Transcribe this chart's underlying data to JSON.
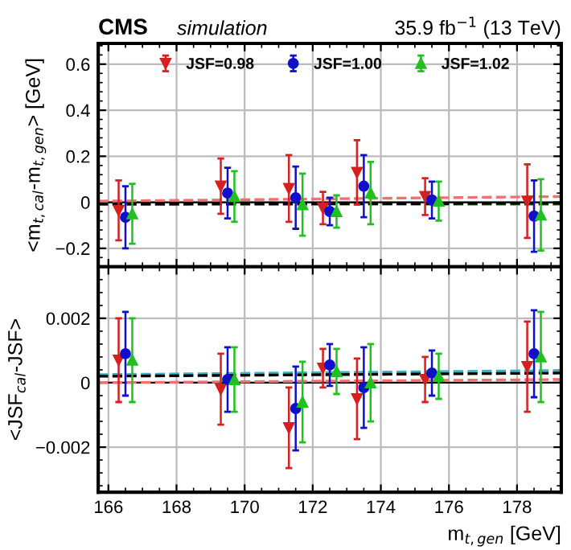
{
  "chart_data": [
    {
      "type": "scatter",
      "title": "CMS",
      "subtitle": "simulation",
      "annotations": [
        "35.9 fb$^{−1}$ (13 TeV)"
      ],
      "ylabel": "<m$_{t,cal}$-m$_{t,gen}$> [GeV]",
      "xlim": [
        165.7,
        179.3
      ],
      "xticks": [
        166,
        168,
        170,
        172,
        174,
        176,
        178
      ],
      "ylim": [
        -0.28,
        0.69
      ],
      "yticks": [
        -0.2,
        0,
        0.2,
        0.4,
        0.6
      ],
      "tick_labels": "y",
      "grid": true,
      "legend": "top",
      "ref_lines": [
        {
          "axis": "y",
          "value": 0,
          "color": "#000000",
          "line_style": "solid"
        }
      ],
      "series": [
        {
          "name": "JSF=0.98",
          "color": "#d62020",
          "marker": "triangle_down",
          "x": [
            166.3,
            169.3,
            171.3,
            172.3,
            173.3,
            175.3,
            178.3
          ],
          "values": [
            -0.035,
            0.07,
            0.06,
            -0.025,
            0.13,
            0.025,
            0.005
          ],
          "errors": [
            0.13,
            0.12,
            0.145,
            0.07,
            0.14,
            0.08,
            0.16
          ]
        },
        {
          "name": "JSF=1.00",
          "color": "#1010c8",
          "marker": "circle",
          "x": [
            166.5,
            169.5,
            171.5,
            172.5,
            173.5,
            175.5,
            178.5
          ],
          "values": [
            -0.065,
            0.04,
            0.02,
            -0.04,
            0.07,
            0.01,
            -0.06
          ],
          "errors": [
            0.135,
            0.11,
            0.135,
            0.06,
            0.135,
            0.08,
            0.155
          ]
        },
        {
          "name": "JSF=1.02",
          "color": "#20c020",
          "marker": "triangle",
          "x": [
            166.7,
            169.7,
            171.7,
            172.7,
            173.7,
            175.7,
            178.7
          ],
          "values": [
            -0.05,
            0.025,
            -0.01,
            -0.04,
            0.04,
            0.005,
            -0.055
          ],
          "errors": [
            0.13,
            0.11,
            0.135,
            0.07,
            0.135,
            0.085,
            0.155
          ]
        },
        {
          "type": "line",
          "color": "#f07070",
          "line_style": "dashed",
          "x": [
            165.7,
            179.3
          ],
          "values": [
            0.005,
            0.025
          ]
        },
        {
          "type": "line",
          "color": "#70d070",
          "line_style": "dashed",
          "x": [
            165.7,
            179.3
          ],
          "values": [
            -0.01,
            -0.01
          ]
        },
        {
          "type": "line",
          "color": "#000000",
          "line_style": "dashed",
          "x": [
            165.7,
            179.3
          ],
          "values": [
            -0.008,
            -0.005
          ]
        }
      ]
    },
    {
      "type": "scatter",
      "ylabel": "<JSF$_{cal}$-JSF>",
      "xlabel": "m$_{t,gen}$ [GeV]",
      "xlim": [
        165.7,
        179.3
      ],
      "xticks": [
        166,
        168,
        170,
        172,
        174,
        176,
        178
      ],
      "ylim": [
        -0.0034,
        0.0036
      ],
      "yticks": [
        -0.002,
        0,
        0.002
      ],
      "grid": true,
      "ref_lines": [
        {
          "axis": "y",
          "value": 0,
          "color": "#000000",
          "line_style": "solid"
        }
      ],
      "series": [
        {
          "color": "#d62020",
          "marker": "triangle_down",
          "x": [
            166.3,
            169.3,
            171.3,
            172.3,
            173.3,
            175.3,
            178.3
          ],
          "values": [
            0.0007,
            -0.0002,
            -0.0014,
            0.00045,
            -0.0005,
            0.0001,
            0.0005
          ],
          "errors": [
            0.0013,
            0.0011,
            0.00125,
            0.0006,
            0.00125,
            0.0007,
            0.0014
          ]
        },
        {
          "color": "#1010c8",
          "marker": "circle",
          "x": [
            166.5,
            169.5,
            171.5,
            172.5,
            173.5,
            175.5,
            178.5
          ],
          "values": [
            0.0009,
            0.0001,
            -0.0008,
            0.00055,
            -0.00015,
            0.0003,
            0.0009
          ],
          "errors": [
            0.0013,
            0.001,
            0.0013,
            0.00065,
            0.00125,
            0.0007,
            0.00135
          ]
        },
        {
          "color": "#20c020",
          "marker": "triangle",
          "x": [
            166.7,
            169.7,
            171.7,
            172.7,
            173.7,
            175.7,
            178.7
          ],
          "values": [
            0.0007,
            0.0001,
            -0.0006,
            0.00035,
            0.0,
            0.0002,
            0.0008
          ],
          "errors": [
            0.0013,
            0.001,
            0.00125,
            0.0007,
            0.0012,
            0.0007,
            0.0014
          ]
        },
        {
          "type": "line",
          "color": "#f07070",
          "line_style": "dashed",
          "x": [
            165.7,
            179.3
          ],
          "values": [
            0.0,
            0.0001
          ]
        },
        {
          "type": "line",
          "color": "#40b0c0",
          "line_style": "dashed",
          "x": [
            165.7,
            179.3
          ],
          "values": [
            0.00025,
            0.00038
          ]
        },
        {
          "type": "line",
          "color": "#000000",
          "line_style": "dashed",
          "x": [
            165.7,
            179.3
          ],
          "values": [
            0.0002,
            0.0003
          ]
        }
      ]
    }
  ]
}
